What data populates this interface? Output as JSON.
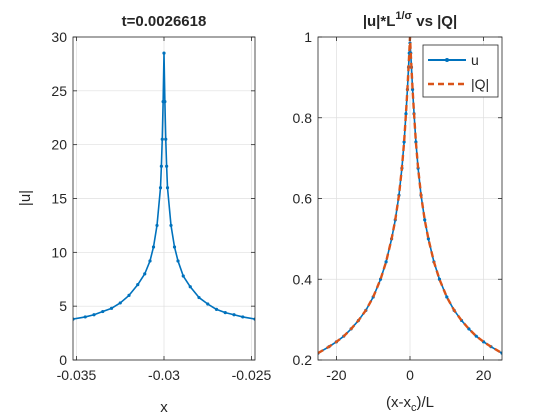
{
  "chart_data": [
    {
      "type": "line",
      "title": "t=0.0026618",
      "xlabel": "x",
      "ylabel": "|u|",
      "xlim": [
        -0.0352,
        -0.0248
      ],
      "ylim": [
        0,
        30
      ],
      "xticks": [
        -0.035,
        -0.03,
        -0.025
      ],
      "xtick_labels": [
        "-0.035",
        "-0.03",
        "-0.025"
      ],
      "yticks": [
        0,
        5,
        10,
        15,
        20,
        25,
        30
      ],
      "ytick_labels": [
        "0",
        "5",
        "10",
        "15",
        "20",
        "25",
        "30"
      ],
      "grid": true,
      "series": [
        {
          "color": "#0072BD",
          "marker": "dot",
          "x": [
            -0.0352,
            -0.0345,
            -0.034,
            -0.0335,
            -0.033,
            -0.0325,
            -0.032,
            -0.0315,
            -0.0311,
            -0.0308,
            -0.0306,
            -0.0304,
            -0.0302,
            -0.03015,
            -0.0301,
            -0.03005,
            -0.03,
            -0.02995,
            -0.0299,
            -0.02985,
            -0.0298,
            -0.0296,
            -0.0294,
            -0.0292,
            -0.0289,
            -0.0285,
            -0.028,
            -0.0275,
            -0.027,
            -0.0265,
            -0.026,
            -0.0255,
            -0.0248
          ],
          "y": [
            3.8,
            4.0,
            4.2,
            4.5,
            4.8,
            5.3,
            6.0,
            7.0,
            8.0,
            9.2,
            10.5,
            12.5,
            16.0,
            18.0,
            20.5,
            24.0,
            28.5,
            24.0,
            20.5,
            18.0,
            16.0,
            12.5,
            10.5,
            9.2,
            7.8,
            6.8,
            5.8,
            5.2,
            4.7,
            4.4,
            4.2,
            4.0,
            3.8
          ]
        }
      ]
    },
    {
      "type": "line",
      "title_main": "|u|*L",
      "title_sup": "1/σ",
      "title_rest": " vs |Q|",
      "xlabel_main": "(x-x",
      "xlabel_sub": "c",
      "xlabel_rest": ")/L",
      "xlim": [
        -25,
        25
      ],
      "ylim": [
        0.2,
        1
      ],
      "xticks": [
        -20,
        0,
        20
      ],
      "xtick_labels": [
        "-20",
        "0",
        "20"
      ],
      "yticks": [
        0.2,
        0.4,
        0.6,
        0.8,
        1
      ],
      "ytick_labels": [
        "0.2",
        "0.4",
        "0.6",
        "0.8",
        "1"
      ],
      "grid": true,
      "legend_position": "top-right",
      "series": [
        {
          "name": "u",
          "color": "#0072BD",
          "style": "solid",
          "marker": "dot",
          "x": [
            -25,
            -22,
            -20,
            -18,
            -16,
            -14,
            -12,
            -10,
            -8,
            -6.5,
            -5,
            -4,
            -3,
            -2.2,
            -1.6,
            -1.1,
            -0.7,
            -0.4,
            -0.2,
            0,
            0.2,
            0.4,
            0.7,
            1.1,
            1.6,
            2.2,
            3,
            4,
            5,
            6.5,
            8,
            10,
            12,
            14,
            16,
            18,
            20,
            22,
            25
          ],
          "y": [
            0.217,
            0.233,
            0.245,
            0.259,
            0.277,
            0.298,
            0.323,
            0.356,
            0.4,
            0.443,
            0.5,
            0.547,
            0.608,
            0.675,
            0.74,
            0.81,
            0.87,
            0.925,
            0.96,
            0.985,
            0.96,
            0.925,
            0.87,
            0.81,
            0.74,
            0.675,
            0.608,
            0.547,
            0.5,
            0.443,
            0.4,
            0.356,
            0.323,
            0.298,
            0.277,
            0.259,
            0.245,
            0.233,
            0.217
          ]
        },
        {
          "name": "|Q|",
          "color": "#D95319",
          "style": "dashed",
          "x": [
            -25,
            -22,
            -20,
            -18,
            -16,
            -14,
            -12,
            -10,
            -8,
            -6.5,
            -5,
            -4,
            -3,
            -2.2,
            -1.6,
            -1.1,
            -0.7,
            -0.4,
            -0.2,
            0,
            0.2,
            0.4,
            0.7,
            1.1,
            1.6,
            2.2,
            3,
            4,
            5,
            6.5,
            8,
            10,
            12,
            14,
            16,
            18,
            20,
            22,
            25
          ],
          "y": [
            0.217,
            0.233,
            0.245,
            0.259,
            0.277,
            0.298,
            0.323,
            0.356,
            0.4,
            0.443,
            0.5,
            0.547,
            0.608,
            0.675,
            0.74,
            0.81,
            0.87,
            0.925,
            0.96,
            1.0,
            0.96,
            0.925,
            0.87,
            0.81,
            0.74,
            0.675,
            0.608,
            0.547,
            0.5,
            0.443,
            0.4,
            0.356,
            0.323,
            0.298,
            0.277,
            0.259,
            0.245,
            0.233,
            0.217
          ]
        }
      ]
    }
  ]
}
